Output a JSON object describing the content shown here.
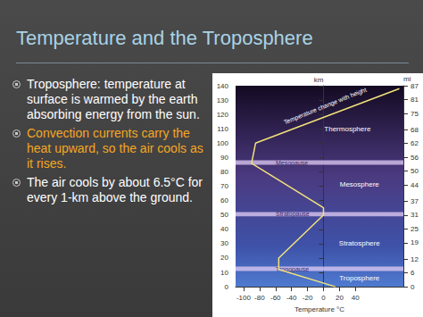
{
  "slide": {
    "title": "Temperature and the Troposphere",
    "bullets": [
      {
        "text": "Troposphere: temperature at surface is warmed by the earth absorbing energy from the sun.",
        "color": "#ffffff"
      },
      {
        "text": "Convection currents carry the heat upward, so the air cools as it rises.",
        "color": "#f5a623"
      },
      {
        "text": "The air cools by about 6.5°C for every 1-km above the ground.",
        "color": "#ffffff"
      }
    ]
  },
  "chart_data": {
    "type": "line",
    "x": [
      15,
      -56,
      -56,
      0,
      0,
      -90,
      -85,
      95
    ],
    "values": [
      0,
      12,
      20,
      50,
      55,
      86,
      100,
      138
    ],
    "color": "#f2e27a",
    "xlabel": "Temperature °C",
    "ylabel": "km",
    "y2label": "mi",
    "xlim": [
      -110,
      100
    ],
    "xticks": [
      -100,
      -80,
      -60,
      -40,
      -20,
      0,
      20,
      40
    ],
    "ylim": [
      0,
      140
    ],
    "yticks": [
      0,
      10,
      20,
      30,
      40,
      50,
      60,
      70,
      80,
      90,
      100,
      110,
      120,
      130,
      140
    ],
    "y2lim": [
      0,
      87
    ],
    "y2ticks": [
      0,
      6,
      12,
      19,
      25,
      31,
      37,
      44,
      50,
      56,
      62,
      68,
      75,
      81,
      87
    ],
    "bands": [
      {
        "label": "Tropopause",
        "values": [
          11,
          14
        ]
      },
      {
        "label": "Stratopause",
        "values": [
          49,
          52
        ]
      },
      {
        "label": "Mesopause",
        "values": [
          85,
          88
        ]
      }
    ],
    "annotations": [
      {
        "text": "Thermosphere",
        "x": 30,
        "y": 110
      },
      {
        "text": "Mesosphere",
        "x": 45,
        "y": 71
      },
      {
        "text": "Stratosphere",
        "x": 45,
        "y": 30
      },
      {
        "text": "Troposphere",
        "x": 45,
        "y": 6
      },
      {
        "text": "Temperature change with height",
        "x": 2,
        "y": 126
      }
    ]
  }
}
